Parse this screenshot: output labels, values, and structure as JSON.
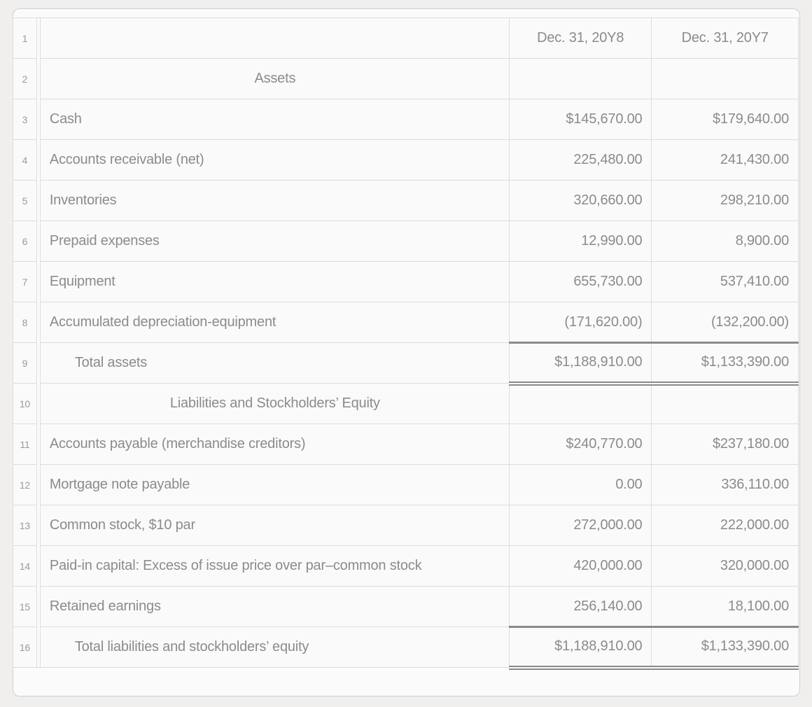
{
  "app": {
    "name": "Comparative Balance Sheet worksheet"
  },
  "colors": {
    "page_bg": "#f0efee",
    "panel_bg": "#fcfbfb",
    "cell_bg": "#fbfafa",
    "grid_line": "#dcdcdc",
    "total_rule_line": "#8a8a8a",
    "text": "#8b8b8b",
    "row_number_text": "#9a9a9a"
  },
  "table": {
    "column_headers": {
      "y8": "Dec. 31, 20Y8",
      "y7": "Dec. 31, 20Y7"
    },
    "rows": [
      {
        "num": "1",
        "label": "",
        "align": "left",
        "y8": "Dec. 31, 20Y8",
        "y7": "Dec. 31, 20Y7",
        "header": true,
        "total": false
      },
      {
        "num": "2",
        "label": "Assets",
        "align": "center",
        "y8": "",
        "y7": "",
        "header": false,
        "total": false
      },
      {
        "num": "3",
        "label": "Cash",
        "align": "left",
        "y8": "$145,670.00",
        "y7": "$179,640.00",
        "header": false,
        "total": false
      },
      {
        "num": "4",
        "label": "Accounts receivable (net)",
        "align": "left",
        "y8": "225,480.00",
        "y7": "241,430.00",
        "header": false,
        "total": false
      },
      {
        "num": "5",
        "label": "Inventories",
        "align": "left",
        "y8": "320,660.00",
        "y7": "298,210.00",
        "header": false,
        "total": false
      },
      {
        "num": "6",
        "label": "Prepaid expenses",
        "align": "left",
        "y8": "12,990.00",
        "y7": "8,900.00",
        "header": false,
        "total": false
      },
      {
        "num": "7",
        "label": "Equipment",
        "align": "left",
        "y8": "655,730.00",
        "y7": "537,410.00",
        "header": false,
        "total": false
      },
      {
        "num": "8",
        "label": "Accumulated depreciation-equipment",
        "align": "left",
        "y8": "(171,620.00)",
        "y7": "(132,200.00)",
        "header": false,
        "total": false
      },
      {
        "num": "9",
        "label": "Total assets",
        "align": "indent",
        "y8": "$1,188,910.00",
        "y7": "$1,133,390.00",
        "header": false,
        "total": true
      },
      {
        "num": "10",
        "label": "Liabilities and Stockholders’ Equity",
        "align": "center",
        "y8": "",
        "y7": "",
        "header": false,
        "total": false
      },
      {
        "num": "11",
        "label": "Accounts payable (merchandise creditors)",
        "align": "left",
        "y8": "$240,770.00",
        "y7": "$237,180.00",
        "header": false,
        "total": false
      },
      {
        "num": "12",
        "label": "Mortgage note payable",
        "align": "left",
        "y8": "0.00",
        "y7": "336,110.00",
        "header": false,
        "total": false
      },
      {
        "num": "13",
        "label": "Common stock, $10 par",
        "align": "left",
        "y8": "272,000.00",
        "y7": "222,000.00",
        "header": false,
        "total": false
      },
      {
        "num": "14",
        "label": "Paid-in capital: Excess of issue price over par–common stock",
        "align": "left",
        "y8": "420,000.00",
        "y7": "320,000.00",
        "header": false,
        "total": false
      },
      {
        "num": "15",
        "label": "Retained earnings",
        "align": "left",
        "y8": "256,140.00",
        "y7": "18,100.00",
        "header": false,
        "total": false
      },
      {
        "num": "16",
        "label": "Total liabilities and stockholders’ equity",
        "align": "indent",
        "y8": "$1,188,910.00",
        "y7": "$1,133,390.00",
        "header": false,
        "total": true
      }
    ]
  }
}
